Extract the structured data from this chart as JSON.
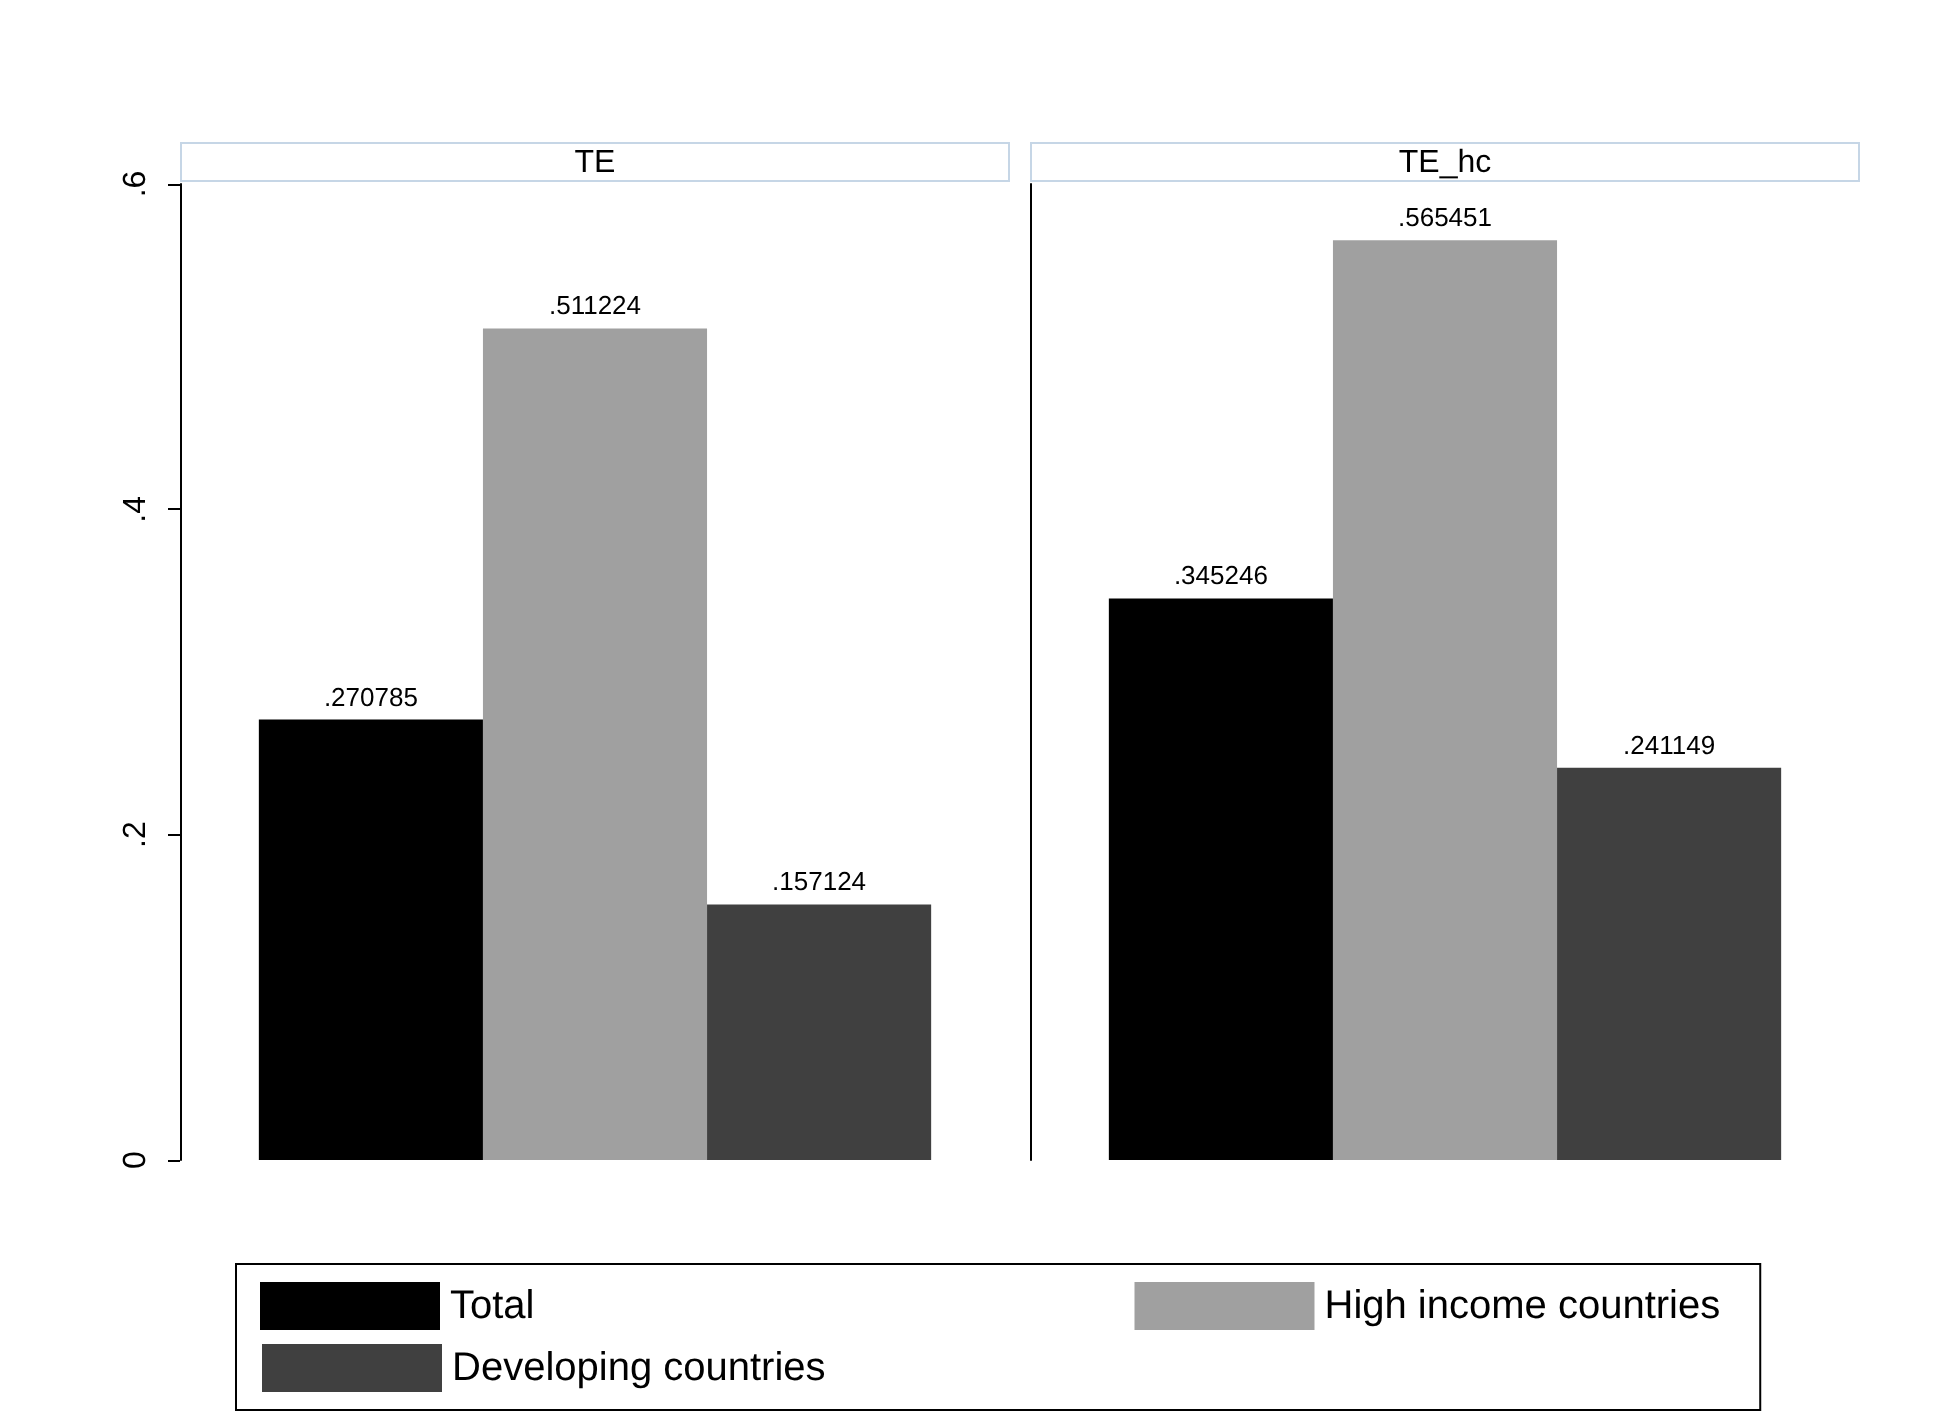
{
  "chart_data": {
    "type": "bar",
    "categories": [
      "TE",
      "TE_hc"
    ],
    "ylim": [
      0,
      0.6
    ],
    "yticks": [
      {
        "value": 0,
        "label": "0"
      },
      {
        "value": 0.2,
        "label": ".2"
      },
      {
        "value": 0.4,
        "label": ".4"
      },
      {
        "value": 0.6,
        "label": ".6"
      }
    ],
    "legend": "bottom",
    "series": [
      {
        "name": "Total",
        "color": "#000000",
        "values": [
          0.270785,
          0.345246
        ],
        "value_labels": [
          ".270785",
          ".345246"
        ]
      },
      {
        "name": "High income countries",
        "color": "#a0a0a0",
        "values": [
          0.511224,
          0.565451
        ],
        "value_labels": [
          ".511224",
          ".565451"
        ]
      },
      {
        "name": "Developing countries",
        "color": "#404040",
        "values": [
          0.157124,
          0.241149
        ],
        "value_labels": [
          ".157124",
          ".241149"
        ]
      }
    ]
  }
}
